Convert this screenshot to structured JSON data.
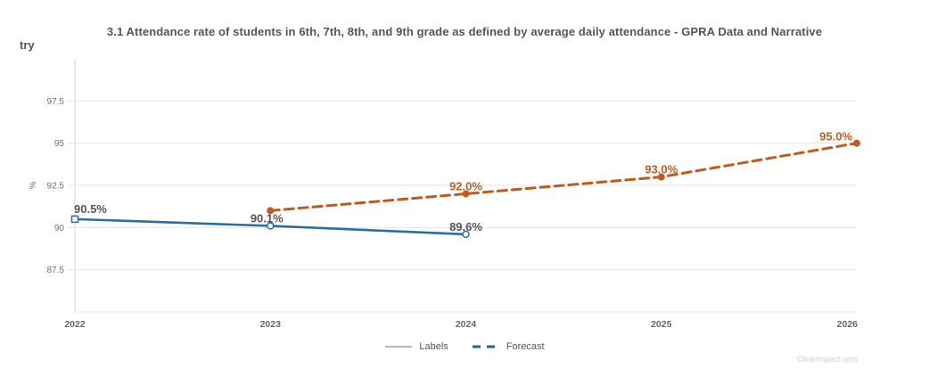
{
  "header": {
    "title": "3.1 Attendance rate of students in 6th, 7th, 8th, and 9th grade as defined by average daily attendance - GPRA Data and Narrative",
    "partial_label": "try"
  },
  "watermark": "ClearImpact.com",
  "chart_data": {
    "type": "line",
    "title": "3.1 Attendance rate of students in 6th, 7th, 8th, and 9th grade as defined by average daily attendance - GPRA Data and Narrative",
    "xlabel": "",
    "ylabel": "%",
    "x": [
      2022,
      2023,
      2024,
      2025,
      2026
    ],
    "yticks": [
      87.5,
      90,
      92.5,
      95,
      97.5
    ],
    "ylim": [
      85,
      100
    ],
    "grid": true,
    "legend_position": "bottom-center",
    "series": [
      {
        "name": "Labels",
        "color": "#2e6e9e",
        "label_color": "#555555",
        "line_style": "solid",
        "points": [
          {
            "x": 2022,
            "y": 90.5,
            "label": "90.5%",
            "marker": "square-open"
          },
          {
            "x": 2023,
            "y": 90.1,
            "label": "90.1%",
            "marker": "circle-open"
          },
          {
            "x": 2024,
            "y": 89.6,
            "label": "89.6%",
            "marker": "circle-open"
          }
        ]
      },
      {
        "name": "Forecast",
        "color": "#bf5b21",
        "label_color": "#bf5b21",
        "line_style": "dashed",
        "points": [
          {
            "x": 2023,
            "y": 91.0,
            "label": "",
            "marker": "circle-filled"
          },
          {
            "x": 2024,
            "y": 92.0,
            "label": "92.0%",
            "marker": "circle-filled"
          },
          {
            "x": 2025,
            "y": 93.0,
            "label": "93.0%",
            "marker": "circle-filled"
          },
          {
            "x": 2026,
            "y": 95.0,
            "label": "95.0%",
            "marker": "circle-filled"
          }
        ]
      }
    ],
    "legend": [
      {
        "label": "Labels",
        "swatch": "thin-solid-line",
        "color": "#86a8c6"
      },
      {
        "label": "Forecast",
        "swatch": "thick-dashed-line",
        "color": "#26648e"
      }
    ],
    "colors": {
      "grid": "#e4e4e4",
      "axis": "#d6d6d6",
      "tick_text": "#707070",
      "x_tick_text": "#666666",
      "value_label_text": "#555555"
    }
  }
}
